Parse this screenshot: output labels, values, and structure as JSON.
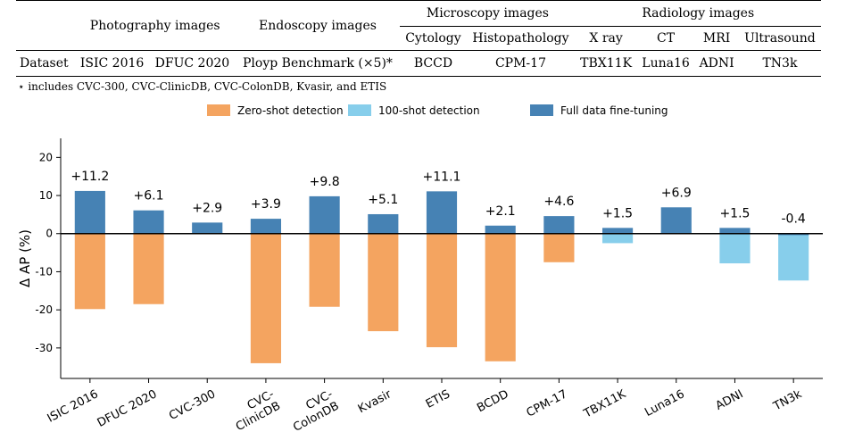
{
  "table": {
    "groups": {
      "photography": "Photography images",
      "endoscopy": "Endoscopy images",
      "microscopy": "Microscopy images",
      "radiology": "Radiology images"
    },
    "subheaders": {
      "cytology": "Cytology",
      "histopathology": "Histopathology",
      "xray": "X ray",
      "ct": "CT",
      "mri": "MRI",
      "ultrasound": "Ultrasound"
    },
    "row_label": "Dataset",
    "datasets": {
      "isic": "ISIC 2016",
      "dfuc": "DFUC 2020",
      "ployp": "Ployp Benchmark (×5)*",
      "bccd": "BCCD",
      "cpm": "CPM-17",
      "tbx": "TBX11K",
      "luna": "Luna16",
      "adni": "ADNI",
      "tn3k": "TN3k"
    },
    "footnote": "⋆ includes CVC-300, CVC-ClinicDB, CVC-ColonDB, Kvasir, and ETIS"
  },
  "chart_data": {
    "type": "bar",
    "ylabel": "Δ AP (%)",
    "ylim": [
      -38,
      25
    ],
    "yticks": [
      -30,
      -20,
      -10,
      0,
      10,
      20
    ],
    "ytick_labels": [
      "-30",
      "-20",
      "-10",
      "0",
      "10",
      "20"
    ],
    "legend": [
      {
        "name": "Zero-shot detection",
        "color": "#f4a460"
      },
      {
        "name": "100-shot detection",
        "color": "#87ceeb"
      },
      {
        "name": "Full data fine-tuning",
        "color": "#4682b4"
      }
    ],
    "legend_position": "top-center",
    "categories": [
      "ISIC 2016",
      "DFUC 2020",
      "CVC-300",
      "CVC-ClinicDB",
      "CVC-ColonDB",
      "Kvasir",
      "ETIS",
      "BCDD",
      "CPM-17",
      "TBX11K",
      "Luna16",
      "ADNI",
      "TN3k"
    ],
    "category_lines": [
      [
        "ISIC 2016"
      ],
      [
        "DFUC 2020"
      ],
      [
        "CVC-300"
      ],
      [
        "CVC-",
        "ClinicDB"
      ],
      [
        "CVC-",
        "ColonDB"
      ],
      [
        "Kvasir"
      ],
      [
        "ETIS"
      ],
      [
        "BCDD"
      ],
      [
        "CPM-17"
      ],
      [
        "TBX11K"
      ],
      [
        "Luna16"
      ],
      [
        "ADNI"
      ],
      [
        "TN3k"
      ]
    ],
    "series": [
      {
        "name": "Full data fine-tuning",
        "values": [
          11.2,
          6.1,
          2.9,
          3.9,
          9.8,
          5.1,
          11.1,
          2.1,
          4.6,
          1.5,
          6.9,
          1.5,
          -0.4
        ]
      },
      {
        "name": "Zero-shot detection",
        "values": [
          -19.8,
          -18.5,
          null,
          -34.0,
          -19.2,
          -25.6,
          -29.8,
          -33.5,
          -7.5,
          null,
          null,
          null,
          null
        ]
      },
      {
        "name": "100-shot detection",
        "values": [
          null,
          null,
          null,
          null,
          null,
          null,
          null,
          null,
          null,
          -2.5,
          0.8,
          -7.8,
          -12.3
        ]
      }
    ],
    "data_labels": [
      "+11.2",
      "+6.1",
      "+2.9",
      "+3.9",
      "+9.8",
      "+5.1",
      "+11.1",
      "+2.1",
      "+4.6",
      "+1.5",
      "+6.9",
      "+1.5",
      "-0.4"
    ]
  }
}
